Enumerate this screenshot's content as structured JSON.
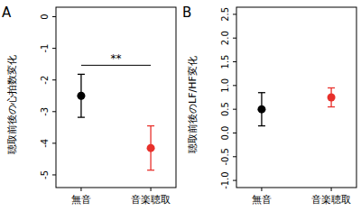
{
  "chart_data": [
    {
      "type": "scatter",
      "title": "A",
      "y_label": "聴取前後の心拍数変化",
      "categories": [
        "無音",
        "音楽聴取"
      ],
      "values": [
        -2.5,
        -4.15
      ],
      "errors": [
        0.68,
        0.7
      ],
      "colors": [
        "#000000",
        "#e8302b"
      ],
      "marker": "circle",
      "ylim": [
        -5.4,
        0.3
      ],
      "yticks": [
        -5,
        -4,
        -3,
        -2,
        -1,
        0
      ],
      "annotations": [
        {
          "text": "**"
        }
      ]
    },
    {
      "type": "scatter",
      "title": "B",
      "y_label": "聴取前後のLF/HF変化",
      "categories": [
        "無音",
        "音楽聴取"
      ],
      "values": [
        0.5,
        0.75
      ],
      "errors": [
        0.35,
        0.2
      ],
      "colors": [
        "#000000",
        "#e8302b"
      ],
      "marker": "circle",
      "ylim": [
        -1.15,
        2.65
      ],
      "yticks": [
        {
          "value": -1,
          "label": "-1.0"
        },
        -0.5,
        {
          "value": 0,
          "label": "0.0"
        },
        0.5,
        {
          "value": 1,
          "label": "1.0"
        },
        1.5,
        {
          "value": 2,
          "label": "2.0"
        },
        2.5
      ]
    }
  ]
}
